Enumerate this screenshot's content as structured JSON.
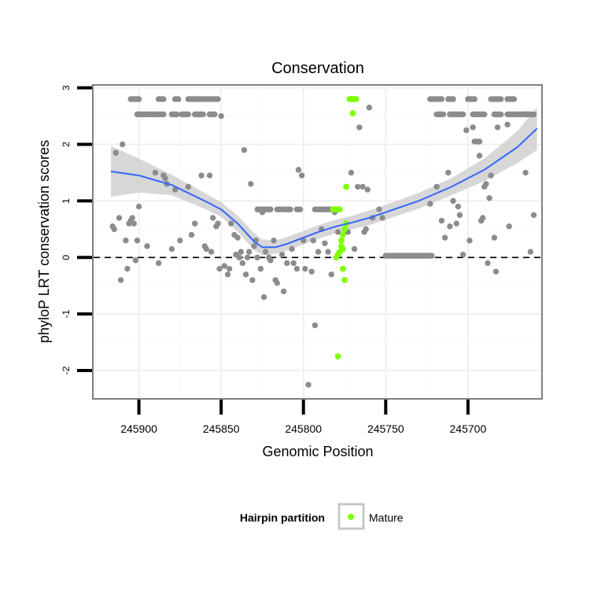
{
  "chart_data": {
    "type": "scatter",
    "title": "Conservation",
    "xlabel": "Genomic Position",
    "ylabel": "phyloP LRT conservation scores",
    "xlim": [
      245928,
      245655
    ],
    "x_reversed": true,
    "ylim": [
      -2.5,
      3.05
    ],
    "x_ticks": [
      245900,
      245850,
      245800,
      245750,
      245700
    ],
    "x_tick_labels": [
      "245900",
      "245850",
      "245800",
      "245750",
      "245700"
    ],
    "y_ticks": [
      -2,
      -1,
      0,
      1,
      2,
      3
    ],
    "y_tick_labels": [
      "-2",
      "-1",
      "0",
      "1",
      "2",
      "3"
    ],
    "reference_line": {
      "y": 0,
      "style": "dashed"
    },
    "grid": true,
    "legend": {
      "title": "Hairpin partition",
      "entries": [
        {
          "label": "Mature",
          "color": "#7fff00"
        }
      ],
      "position": "bottom"
    },
    "colors": {
      "background_points": "#8c8c8c",
      "mature": "#7fff00",
      "smooth": "#3366ff",
      "ribbon": "#d3d3d3"
    },
    "series": [
      {
        "name": "Other",
        "color": "#8c8c8c",
        "points": [
          [
            245916,
            0.55
          ],
          [
            245915,
            0.5
          ],
          [
            245914,
            1.85
          ],
          [
            245912,
            0.7
          ],
          [
            245911,
            -0.4
          ],
          [
            245910,
            2.0
          ],
          [
            245908,
            0.3
          ],
          [
            245907,
            -0.2
          ],
          [
            245906,
            0.6
          ],
          [
            245905,
            0.65
          ],
          [
            245904,
            0.7
          ],
          [
            245903,
            0.6
          ],
          [
            245902,
            -0.05
          ],
          [
            245901,
            0.3
          ],
          [
            245900,
            0.9
          ],
          [
            245895,
            0.2
          ],
          [
            245890,
            1.5
          ],
          [
            245888,
            -0.1
          ],
          [
            245885,
            1.45
          ],
          [
            245884,
            1.4
          ],
          [
            245883,
            1.3
          ],
          [
            245880,
            0.15
          ],
          [
            245878,
            1.2
          ],
          [
            245875,
            0.3
          ],
          [
            245870,
            1.25
          ],
          [
            245868,
            0.4
          ],
          [
            245866,
            0.6
          ],
          [
            245862,
            1.45
          ],
          [
            245860,
            0.2
          ],
          [
            245859,
            0.15
          ],
          [
            245857,
            1.45
          ],
          [
            245856,
            0.1
          ],
          [
            245855,
            0.7
          ],
          [
            245853,
            0.55
          ],
          [
            245852,
            0.6
          ],
          [
            245851,
            -0.2
          ],
          [
            245850,
            2.5
          ],
          [
            245848,
            -0.15
          ],
          [
            245846,
            -0.3
          ],
          [
            245845,
            -0.2
          ],
          [
            245844,
            0.6
          ],
          [
            245842,
            0.4
          ],
          [
            245841,
            0.05
          ],
          [
            245840,
            0.35
          ],
          [
            245839,
            0.0
          ],
          [
            245838,
            0.1
          ],
          [
            245837,
            -0.1
          ],
          [
            245836,
            1.9
          ],
          [
            245835,
            -0.3
          ],
          [
            245834,
            0.0
          ],
          [
            245833,
            0.1
          ],
          [
            245832,
            1.3
          ],
          [
            245831,
            -0.4
          ],
          [
            245830,
            0.2
          ],
          [
            245829,
            0.3
          ],
          [
            245828,
            0.0
          ],
          [
            245826,
            -0.2
          ],
          [
            245825,
            0.8
          ],
          [
            245824,
            -0.7
          ],
          [
            245823,
            0.1
          ],
          [
            245821,
            0.0
          ],
          [
            245820,
            -0.05
          ],
          [
            245818,
            0.3
          ],
          [
            245817,
            -0.4
          ],
          [
            245816,
            -0.45
          ],
          [
            245813,
            0.05
          ],
          [
            245812,
            -0.6
          ],
          [
            245810,
            -0.1
          ],
          [
            245807,
            0.15
          ],
          [
            245806,
            -0.1
          ],
          [
            245804,
            -0.2
          ],
          [
            245803,
            1.55
          ],
          [
            245801,
            1.45
          ],
          [
            245800,
            0.3
          ],
          [
            245799,
            -0.2
          ],
          [
            245797,
            -2.25
          ],
          [
            245795,
            -0.25
          ],
          [
            245794,
            0.3
          ],
          [
            245793,
            -1.2
          ],
          [
            245791,
            0.1
          ],
          [
            245789,
            0.5
          ],
          [
            245787,
            0.25
          ],
          [
            245785,
            0.1
          ],
          [
            245783,
            -0.3
          ],
          [
            245781,
            0.8
          ],
          [
            245779,
            0.45
          ],
          [
            245775,
            0.5
          ],
          [
            245773,
            0.45
          ],
          [
            245771,
            1.5
          ],
          [
            245769,
            0.15
          ],
          [
            245767,
            1.25
          ],
          [
            245766,
            2.3
          ],
          [
            245764,
            1.25
          ],
          [
            245763,
            0.45
          ],
          [
            245762,
            0.5
          ],
          [
            245761,
            1.2
          ],
          [
            245760,
            2.65
          ],
          [
            245758,
            0.7
          ],
          [
            245754,
            0.85
          ],
          [
            245752,
            0.7
          ],
          [
            245723,
            0.95
          ],
          [
            245719,
            1.25
          ],
          [
            245716,
            0.65
          ],
          [
            245714,
            0.35
          ],
          [
            245712,
            1.5
          ],
          [
            245711,
            0.55
          ],
          [
            245709,
            1.0
          ],
          [
            245707,
            0.6
          ],
          [
            245706,
            0.9
          ],
          [
            245705,
            0.75
          ],
          [
            245703,
            0.05
          ],
          [
            245701,
            2.25
          ],
          [
            245699,
            0.3
          ],
          [
            245697,
            2.3
          ],
          [
            245693,
            1.8
          ],
          [
            245692,
            0.65
          ],
          [
            245691,
            0.7
          ],
          [
            245690,
            1.25
          ],
          [
            245689,
            1.3
          ],
          [
            245688,
            -0.1
          ],
          [
            245687,
            1.05
          ],
          [
            245686,
            1.45
          ],
          [
            245684,
            0.35
          ],
          [
            245683,
            -0.25
          ],
          [
            245682,
            2.3
          ],
          [
            245676,
            2.35
          ],
          [
            245675,
            0.55
          ],
          [
            245665,
            1.5
          ],
          [
            245662,
            0.1
          ],
          [
            245660,
            0.75
          ]
        ],
        "bands": [
          {
            "y": 2.8,
            "x_from": 245905,
            "x_to": 245900
          },
          {
            "y": 2.8,
            "x_from": 245888,
            "x_to": 245885
          },
          {
            "y": 2.8,
            "x_from": 245878,
            "x_to": 245876
          },
          {
            "y": 2.8,
            "x_from": 245870,
            "x_to": 245852
          },
          {
            "y": 2.53,
            "x_from": 245901,
            "x_to": 245885
          },
          {
            "y": 2.53,
            "x_from": 245880,
            "x_to": 245877
          },
          {
            "y": 2.53,
            "x_from": 245874,
            "x_to": 245870
          },
          {
            "y": 2.53,
            "x_from": 245866,
            "x_to": 245861
          },
          {
            "y": 2.53,
            "x_from": 245857,
            "x_to": 245854
          },
          {
            "y": 0.85,
            "x_from": 245828,
            "x_to": 245820
          },
          {
            "y": 0.85,
            "x_from": 245816,
            "x_to": 245814
          },
          {
            "y": 0.85,
            "x_from": 245812,
            "x_to": 245808
          },
          {
            "y": 0.85,
            "x_from": 245804,
            "x_to": 245802
          },
          {
            "y": 0.85,
            "x_from": 245793,
            "x_to": 245783
          },
          {
            "y": 0.03,
            "x_from": 245750,
            "x_to": 245722
          },
          {
            "y": 2.8,
            "x_from": 245723,
            "x_to": 245716
          },
          {
            "y": 2.8,
            "x_from": 245712,
            "x_to": 245709
          },
          {
            "y": 2.8,
            "x_from": 245700,
            "x_to": 245696
          },
          {
            "y": 2.8,
            "x_from": 245686,
            "x_to": 245680
          },
          {
            "y": 2.8,
            "x_from": 245676,
            "x_to": 245672
          },
          {
            "y": 2.53,
            "x_from": 245719,
            "x_to": 245715
          },
          {
            "y": 2.53,
            "x_from": 245711,
            "x_to": 245703
          },
          {
            "y": 2.53,
            "x_from": 245697,
            "x_to": 245690
          },
          {
            "y": 2.53,
            "x_from": 245684,
            "x_to": 245680
          },
          {
            "y": 2.53,
            "x_from": 245676,
            "x_to": 245664
          },
          {
            "y": 2.53,
            "x_from": 245665,
            "x_to": 245660
          },
          {
            "y": 2.05,
            "x_from": 245696,
            "x_to": 245693
          }
        ]
      },
      {
        "name": "Mature",
        "color": "#7fff00",
        "points": [
          [
            245772,
            2.8
          ],
          [
            245771,
            2.8
          ],
          [
            245770,
            2.8
          ],
          [
            245769,
            2.8
          ],
          [
            245768,
            2.8
          ],
          [
            245770,
            2.55
          ],
          [
            245774,
            1.25
          ],
          [
            245774,
            0.6
          ],
          [
            245775,
            0.5
          ],
          [
            245776,
            0.4
          ],
          [
            245782,
            0.85
          ],
          [
            245781,
            0.85
          ],
          [
            245780,
            0.85
          ],
          [
            245779,
            0.85
          ],
          [
            245778,
            0.85
          ],
          [
            245777,
            0.3
          ],
          [
            245777,
            0.2
          ],
          [
            245778,
            0.1
          ],
          [
            245779,
            0.05
          ],
          [
            245780,
            0.0
          ],
          [
            245776,
            0.15
          ],
          [
            245776,
            -0.2
          ],
          [
            245775,
            -0.4
          ],
          [
            245779,
            -1.75
          ]
        ]
      }
    ],
    "smooth": {
      "method": "loess",
      "x": [
        245917,
        245900,
        245880,
        245860,
        245850,
        245840,
        245830,
        245825,
        245817,
        245810,
        245800,
        245790,
        245780,
        245770,
        245760,
        245750,
        245730,
        245710,
        245690,
        245670,
        245658
      ],
      "y": [
        1.52,
        1.45,
        1.28,
        1.0,
        0.85,
        0.6,
        0.28,
        0.18,
        0.18,
        0.24,
        0.35,
        0.46,
        0.55,
        0.62,
        0.7,
        0.8,
        1.0,
        1.25,
        1.55,
        1.95,
        2.28
      ],
      "se": [
        0.45,
        0.3,
        0.18,
        0.14,
        0.13,
        0.14,
        0.15,
        0.14,
        0.12,
        0.12,
        0.12,
        0.12,
        0.12,
        0.12,
        0.13,
        0.13,
        0.14,
        0.15,
        0.2,
        0.28,
        0.38
      ]
    }
  }
}
